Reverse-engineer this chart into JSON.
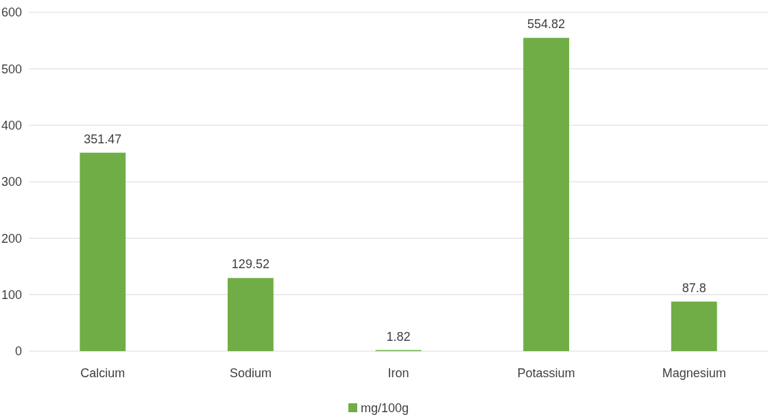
{
  "chart_data": {
    "type": "bar",
    "categories": [
      "Calcium",
      "Sodium",
      "Iron",
      "Potassium",
      "Magnesium"
    ],
    "series": [
      {
        "name": "mg/100g",
        "color": "#70ad47",
        "values": [
          351.47,
          129.52,
          1.82,
          554.82,
          87.8
        ]
      }
    ],
    "ylim": [
      0,
      600
    ],
    "yticks": [
      0,
      100,
      200,
      300,
      400,
      500,
      600
    ],
    "grid": "y",
    "legend": "bottom",
    "data_labels": true
  }
}
